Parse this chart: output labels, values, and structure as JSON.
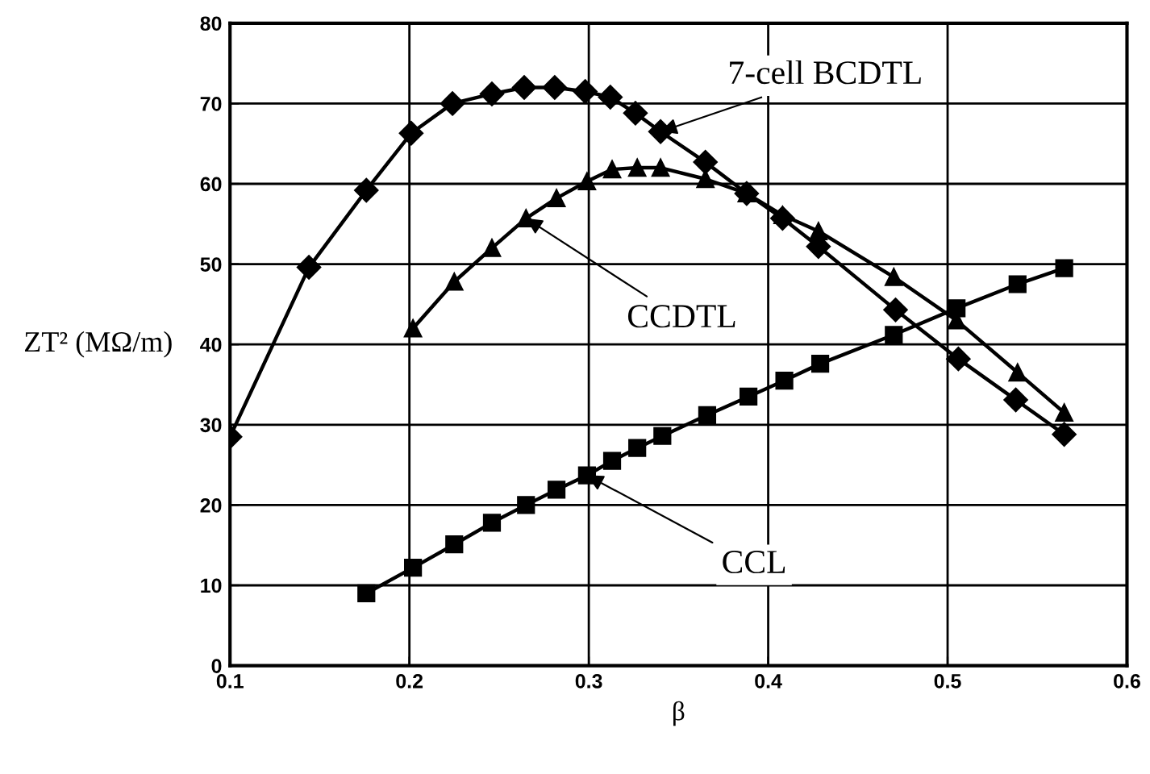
{
  "chart_data": {
    "type": "line",
    "xlabel": "β",
    "ylabel": "ZT² (MΩ/m)",
    "xlim": [
      0.1,
      0.6
    ],
    "xticks": [
      0.1,
      0.2,
      0.3,
      0.4,
      0.5,
      0.6
    ],
    "ylim": [
      0,
      80
    ],
    "yticks": [
      0,
      10,
      20,
      30,
      40,
      50,
      60,
      70,
      80
    ],
    "grid": true,
    "series": [
      {
        "color": "#000000",
        "marker": "diamond",
        "x": [
          0.1,
          0.144,
          0.176,
          0.201,
          0.224,
          0.246,
          0.264,
          0.281,
          0.298,
          0.312,
          0.326,
          0.34,
          0.365,
          0.388,
          0.408,
          0.428,
          0.471,
          0.506,
          0.538,
          0.565
        ],
        "values": [
          28.5,
          49.6,
          59.2,
          66.3,
          70,
          71.2,
          72,
          72,
          71.5,
          70.8,
          68.8,
          66.5,
          62.7,
          58.8,
          55.7,
          52.2,
          44.3,
          38.2,
          33.1,
          28.8
        ]
      },
      {
        "color": "#000000",
        "marker": "triangle",
        "x": [
          0.202,
          0.225,
          0.246,
          0.265,
          0.282,
          0.299,
          0.313,
          0.327,
          0.34,
          0.365,
          0.388,
          0.408,
          0.428,
          0.47,
          0.505,
          0.539,
          0.565
        ],
        "values": [
          42,
          47.8,
          52,
          55.7,
          58.2,
          60.3,
          61.8,
          62,
          62,
          60.6,
          58.8,
          56.1,
          54.1,
          48.4,
          43,
          36.5,
          31.5
        ]
      },
      {
        "color": "#000000",
        "marker": "square",
        "x": [
          0.176,
          0.202,
          0.225,
          0.246,
          0.265,
          0.282,
          0.299,
          0.313,
          0.327,
          0.341,
          0.366,
          0.389,
          0.409,
          0.429,
          0.47,
          0.505,
          0.539,
          0.565
        ],
        "values": [
          9,
          12.2,
          15.1,
          17.8,
          20,
          21.9,
          23.7,
          25.5,
          27.1,
          28.6,
          31.2,
          33.5,
          35.5,
          37.6,
          41.2,
          44.5,
          47.5,
          49.5
        ]
      }
    ],
    "annotations": [
      {
        "text": "7-cell BCDTL",
        "x": 0.34,
        "y": 66.5
      },
      {
        "text": "CCDTL",
        "x": 0.265,
        "y": 55.7
      },
      {
        "text": "CCL",
        "x": 0.299,
        "y": 23.7
      }
    ]
  }
}
